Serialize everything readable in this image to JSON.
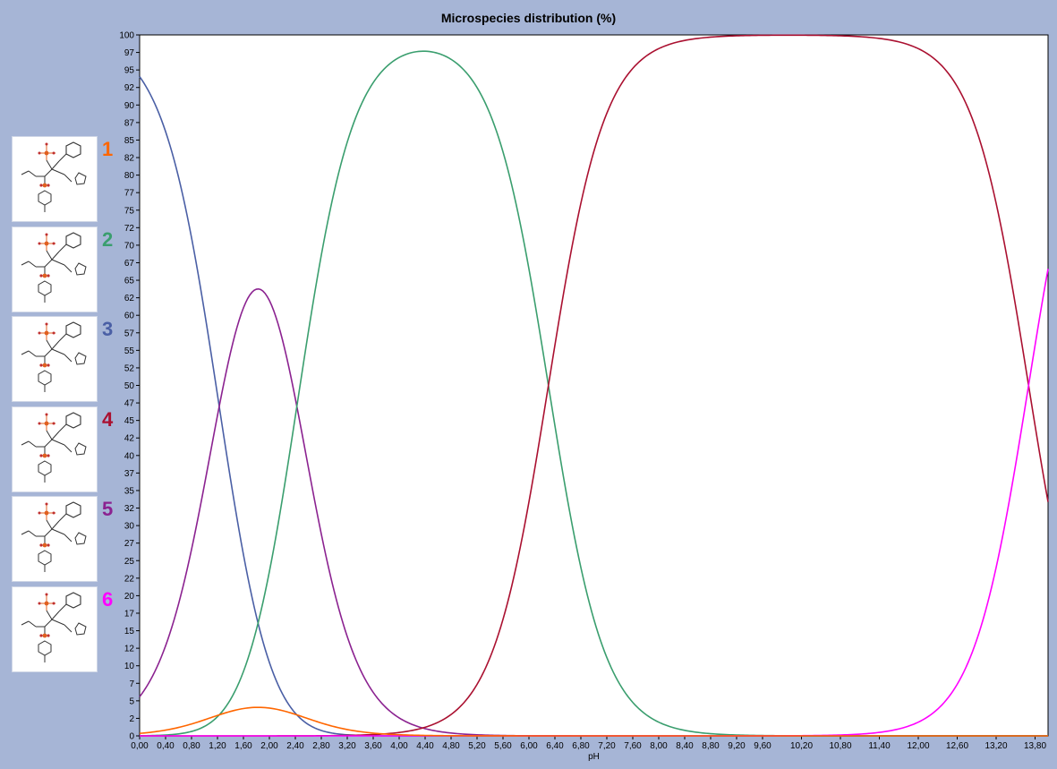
{
  "chart_data": {
    "type": "line",
    "title": "Microspecies distribution (%)",
    "xlabel": "pH",
    "ylabel": "",
    "xlim": [
      0,
      14
    ],
    "ylim": [
      0,
      100
    ],
    "grid": false,
    "x_tick_labels": [
      "0,00",
      "0,40",
      "0,80",
      "1,20",
      "1,60",
      "2,00",
      "2,40",
      "2,80",
      "3,20",
      "3,60",
      "4,00",
      "4,40",
      "4,80",
      "5,20",
      "5,60",
      "6,00",
      "6,40",
      "6,80",
      "7,20",
      "7,60",
      "8,00",
      "8,40",
      "8,80",
      "9,20",
      "9,60",
      "10,20",
      "10,80",
      "11,40",
      "12,00",
      "12,60",
      "13,20",
      "13,80"
    ],
    "y_tick_labels": [
      "0",
      "2",
      "5",
      "7",
      "10",
      "12",
      "15",
      "17",
      "20",
      "22",
      "25",
      "27",
      "30",
      "32",
      "35",
      "37",
      "40",
      "42",
      "45",
      "47",
      "50",
      "52",
      "55",
      "57",
      "60",
      "62",
      "65",
      "67",
      "70",
      "72",
      "75",
      "77",
      "80",
      "82",
      "85",
      "87",
      "90",
      "92",
      "95",
      "97",
      "100"
    ],
    "legend_placement": "left",
    "pKa": [
      1.2,
      2.45,
      6.3,
      13.7
    ],
    "model_note_values": {
      "pKa1": 1.2,
      "pKa2": 2.45,
      "pKa3": 6.3,
      "pKa4": 13.7
    },
    "series": [
      {
        "name": "1",
        "color": "#ff6600"
      },
      {
        "name": "2",
        "color": "#3a9e6e"
      },
      {
        "name": "3",
        "color": "#4a5fa5"
      },
      {
        "name": "4",
        "color": "#aa1030"
      },
      {
        "name": "5",
        "color": "#8b2290"
      },
      {
        "name": "6",
        "color": "#ff00ff"
      }
    ],
    "points": {
      "x": [
        0,
        0.5,
        1,
        1.5,
        1.8,
        2,
        2.5,
        3,
        3.5,
        4,
        4.4,
        5,
        5.5,
        6,
        6.3,
        6.5,
        7,
        7.5,
        8,
        8.5,
        9,
        10,
        11,
        12,
        12.5,
        13,
        13.5,
        13.7,
        14
      ],
      "1": [
        0.2,
        0.8,
        1.8,
        3.3,
        3.9,
        3.9,
        3.2,
        1.7,
        0.7,
        0.2,
        0.1,
        0,
        0,
        0,
        0,
        0,
        0,
        0,
        0,
        0,
        0,
        0,
        0,
        0,
        0,
        0,
        0,
        0,
        0
      ],
      "2": [
        0,
        0,
        0.2,
        1.9,
        6.5,
        13,
        44,
        80,
        92,
        96,
        97,
        96,
        90,
        66,
        50,
        38,
        12,
        3.5,
        1,
        0.3,
        0.1,
        0,
        0,
        0,
        0,
        0,
        0,
        0,
        0
      ],
      "3": [
        94,
        86,
        70,
        40,
        25,
        15,
        3.5,
        0.6,
        0.1,
        0,
        0,
        0,
        0,
        0,
        0,
        0,
        0,
        0,
        0,
        0,
        0,
        0,
        0,
        0,
        0,
        0,
        0,
        0,
        0
      ],
      "4": [
        0,
        0,
        0,
        0,
        0,
        0,
        0,
        0,
        0.1,
        0.6,
        1.8,
        6,
        14,
        34,
        50,
        62,
        88,
        96.5,
        99,
        99.7,
        99.9,
        100,
        100,
        99,
        96,
        83,
        60,
        50,
        39
      ],
      "5": [
        5.2,
        12,
        28,
        55,
        62,
        61,
        47,
        20,
        6,
        2,
        0.9,
        0.2,
        0,
        0,
        0,
        0,
        0,
        0,
        0,
        0,
        0,
        0,
        0,
        0,
        0,
        0,
        0,
        0,
        0
      ],
      "6": [
        0,
        0,
        0,
        0,
        0,
        0,
        0,
        0,
        0,
        0,
        0,
        0,
        0,
        0,
        0,
        0,
        0,
        0,
        0,
        0,
        0,
        0,
        0,
        1,
        3.5,
        17,
        40,
        50,
        61
      ]
    }
  },
  "structures": [
    {
      "label": "1",
      "color": "#ff6600"
    },
    {
      "label": "2",
      "color": "#3a9e6e"
    },
    {
      "label": "3",
      "color": "#4a5fa5"
    },
    {
      "label": "4",
      "color": "#aa1030"
    },
    {
      "label": "5",
      "color": "#8b2290"
    },
    {
      "label": "6",
      "color": "#ff00ff"
    }
  ]
}
